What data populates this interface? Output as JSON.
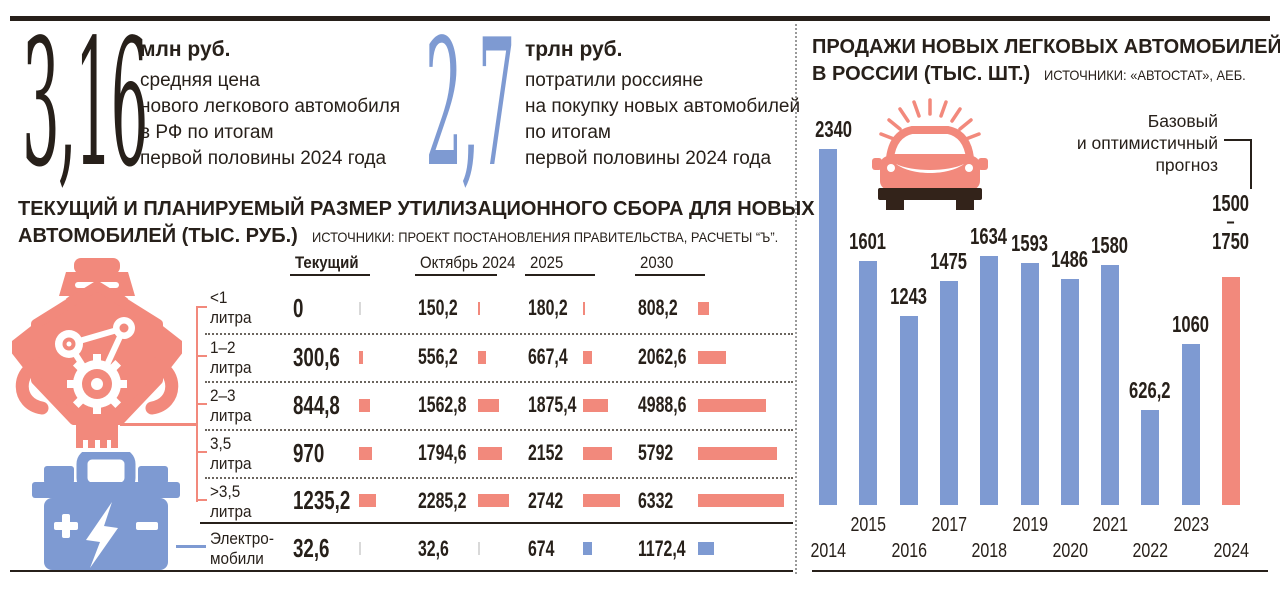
{
  "colors": {
    "accent_pink": "#f2897c",
    "accent_blue": "#7e9ad2",
    "dark_text": "#27201a",
    "tick_gray": "#d9d9d9"
  },
  "stats": [
    {
      "value": "3,16",
      "unit": "млн руб.",
      "desc_lines": [
        "средняя цена",
        "нового легкового автомобиля",
        "в РФ по итогам",
        "первой половины 2024 года"
      ],
      "value_color": "#27201a"
    },
    {
      "value": "2,7",
      "unit": "трлн руб.",
      "desc_lines": [
        "потратили россияне",
        "на покупку новых автомобилей",
        "по итогам",
        "первой половины 2024 года"
      ],
      "value_color": "#7e9ad2"
    }
  ],
  "icons": {
    "engine": "engine-icon",
    "battery": "battery-icon",
    "car": "car-icon"
  },
  "chart_data": [
    {
      "type": "table",
      "title": "ТЕКУЩИЙ И ПЛАНИРУЕМЫЙ РАЗМЕР УТИЛИЗАЦИОННОГО СБОРА ДЛЯ НОВЫХ АВТОМОБИЛЕЙ (ТЫС. РУБ.)",
      "title_line1": "ТЕКУЩИЙ И ПЛАНИРУЕМЫЙ РАЗМЕР УТИЛИЗАЦИОННОГО СБОРА ДЛЯ НОВЫХ",
      "title_line2": "АВТОМОБИЛЕЙ (ТЫС. РУБ.)",
      "source": "ИСТОЧНИКИ: ПРОЕКТ ПОСТАНОВЛЕНИЯ ПРАВИТЕЛЬСТВА, РАСЧЕТЫ “Ъ”.",
      "columns": [
        "Текущий",
        "Октябрь 2024",
        "2025",
        "2030"
      ],
      "rows": [
        {
          "label_lines": [
            "<1",
            "литра"
          ],
          "group": "engine",
          "display": [
            "0",
            "150,2",
            "180,2",
            "808,2"
          ],
          "values": [
            0,
            150.2,
            180.2,
            808.2
          ]
        },
        {
          "label_lines": [
            "1–2",
            "литра"
          ],
          "group": "engine",
          "display": [
            "300,6",
            "556,2",
            "667,4",
            "2062,6"
          ],
          "values": [
            300.6,
            556.2,
            667.4,
            2062.6
          ]
        },
        {
          "label_lines": [
            "2–3",
            "литра"
          ],
          "group": "engine",
          "display": [
            "844,8",
            "1562,8",
            "1875,4",
            "4988,6"
          ],
          "values": [
            844.8,
            1562.8,
            1875.4,
            4988.6
          ]
        },
        {
          "label_lines": [
            "3,5",
            "литра"
          ],
          "group": "engine",
          "display": [
            "970",
            "1794,6",
            "2152",
            "5792"
          ],
          "values": [
            970,
            1794.6,
            2152,
            5792
          ]
        },
        {
          "label_lines": [
            ">3,5",
            "литра"
          ],
          "group": "engine",
          "display": [
            "1235,2",
            "2285,2",
            "2742",
            "6332"
          ],
          "values": [
            1235.2,
            2285.2,
            2742,
            6332
          ]
        },
        {
          "label_lines": [
            "Электро-",
            "мобили"
          ],
          "group": "electric",
          "display": [
            "32,6",
            "32,6",
            "674",
            "1172,4"
          ],
          "values": [
            32.6,
            32.6,
            674,
            1172.4
          ]
        }
      ],
      "bar_max_value": 6332
    },
    {
      "type": "bar",
      "title": "ПРОДАЖИ НОВЫХ ЛЕГКОВЫХ АВТОМОБИЛЕЙ В РОССИИ (ТЫС. ШТ.)",
      "title_line1": "ПРОДАЖИ НОВЫХ ЛЕГКОВЫХ АВТОМОБИЛЕЙ",
      "title_line2": "В РОССИИ (ТЫС. ШТ.)",
      "source": "ИСТОЧНИКИ: «АВТОСТАТ», АЕБ.",
      "categories": [
        "2014",
        "2015",
        "2016",
        "2017",
        "2018",
        "2019",
        "2020",
        "2021",
        "2022",
        "2023",
        "2024"
      ],
      "values": [
        2340,
        1601,
        1243,
        1475,
        1634,
        1593,
        1486,
        1580,
        626.2,
        1060,
        1500
      ],
      "labels": [
        "2340",
        "1601",
        "1243",
        "1475",
        "1634",
        "1593",
        "1486",
        "1580",
        "626,2",
        "1060",
        ""
      ],
      "forecast_index": 10,
      "forecast_range": [
        1500,
        1750
      ],
      "forecast_label_lines": [
        "1500",
        "–",
        "1750"
      ],
      "annotation_lines": [
        "Базовый",
        "и оптимистичный",
        "прогноз"
      ],
      "ylim": [
        0,
        2400
      ],
      "legend": "none",
      "grid": "off"
    }
  ]
}
